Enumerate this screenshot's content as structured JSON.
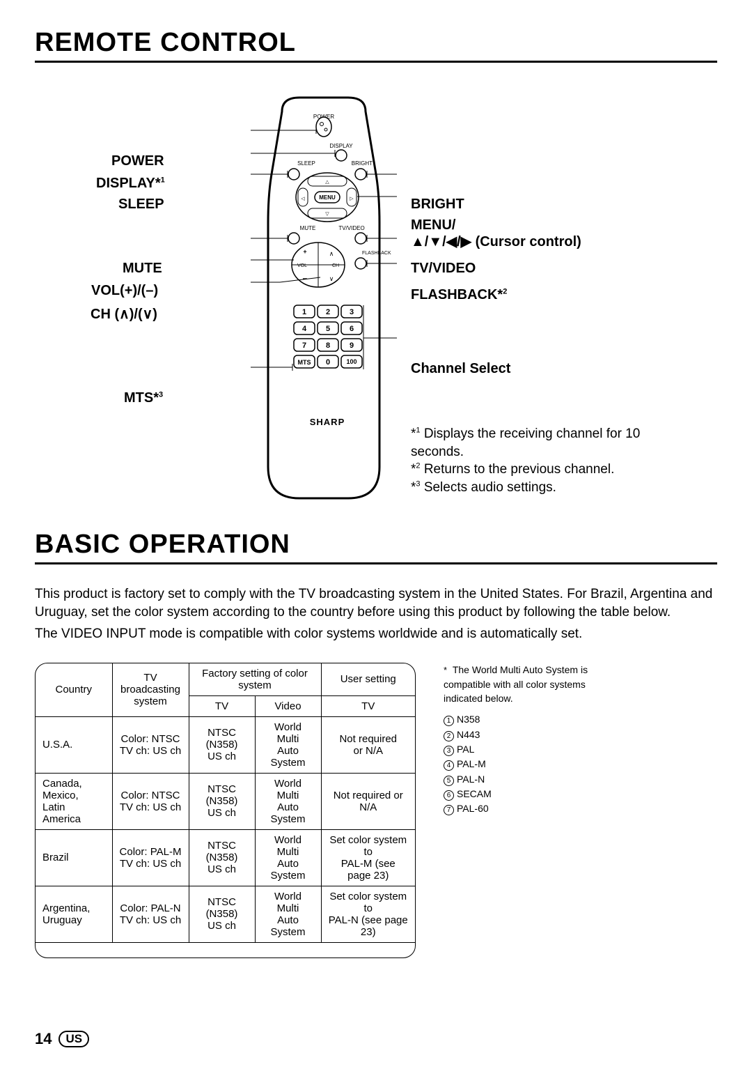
{
  "section1_title": "REMOTE CONTROL",
  "section2_title": "BASIC OPERATION",
  "labels_left": {
    "power": "POWER",
    "display": "DISPLAY*",
    "display_fn": "1",
    "sleep": "SLEEP",
    "mute": "MUTE",
    "vol": "VOL(+)/(–)",
    "ch": "CH (∧)/(∨)",
    "mts": "MTS*",
    "mts_fn": "3"
  },
  "labels_right": {
    "bright": "BRIGHT",
    "menu": "MENU/",
    "cursor": "▲/▼/◀/▶ (Cursor control)",
    "tvvideo": "TV/VIDEO",
    "flashback": "FLASHBACK*",
    "flashback_fn": "2",
    "chselect": "Channel Select"
  },
  "remote_text": {
    "power": "POWER",
    "display": "DISPLAY",
    "sleep": "SLEEP",
    "bright": "BRIGHT",
    "menu": "MENU",
    "mute": "MUTE",
    "tvvideo": "TV/VIDEO",
    "flashback": "FLASHBACK",
    "vol": "VOL",
    "ch": "CH",
    "mts": "MTS",
    "k100": "100",
    "brand": "SHARP",
    "keys": [
      "1",
      "2",
      "3",
      "4",
      "5",
      "6",
      "7",
      "8",
      "9",
      "0"
    ]
  },
  "footnotes": {
    "f1_pre": "*",
    "f1_sup": "1",
    "f1": "Displays the receiving channel for 10 seconds.",
    "f2_sup": "2",
    "f2": "Returns to the previous channel.",
    "f3_sup": "3",
    "f3": "Selects audio settings."
  },
  "body_p1": "This product is factory set to comply with the TV broadcasting system in the United States. For Brazil, Argentina and Uruguay, set the color system according to the country before using this product by following the table below.",
  "body_p2": "The VIDEO INPUT mode is compatible with color systems worldwide and is automatically set.",
  "table": {
    "h_country": "Country",
    "h_tvsys": "TV broadcasting system",
    "h_factory": "Factory setting of color system",
    "h_user": "User setting",
    "h_tv": "TV",
    "h_video": "Video",
    "rows": [
      {
        "c": "U.S.A.",
        "sys": "Color: NTSC\nTV ch: US ch",
        "tv": "NTSC (N358)\nUS ch",
        "vid": "World Multi\nAuto System",
        "user": "Not required\nor N/A"
      },
      {
        "c": "Canada, Mexico,\nLatin America",
        "sys": "Color: NTSC\nTV ch: US ch",
        "tv": "NTSC (N358)\nUS ch",
        "vid": "World Multi\nAuto System",
        "user": "Not required or N/A"
      },
      {
        "c": "Brazil",
        "sys": "Color: PAL-M\nTV ch: US ch",
        "tv": "NTSC (N358)\nUS ch",
        "vid": "World Multi\nAuto System",
        "user": "Set color system to\nPAL-M (see page 23)"
      },
      {
        "c": "Argentina,\nUruguay",
        "sys": "Color: PAL-N\nTV ch: US ch",
        "tv": "NTSC (N358)\nUS ch",
        "vid": "World Multi\nAuto System",
        "user": "Set color system to\nPAL-N (see page 23)"
      }
    ]
  },
  "sidenote": {
    "intro": "The World Multi Auto System is compatible with all color systems indicated below.",
    "items": [
      "N358",
      "N443",
      "PAL",
      "PAL-M",
      "PAL-N",
      "SECAM",
      "PAL-60"
    ]
  },
  "page_number": "14",
  "page_region": "US"
}
